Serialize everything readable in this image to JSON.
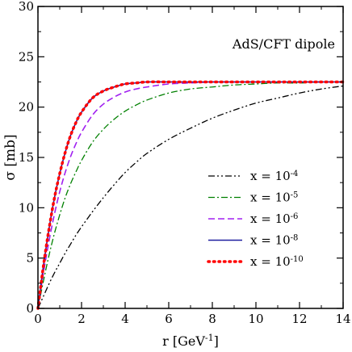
{
  "chart_data": {
    "type": "line",
    "annotation": "AdS/CFT dipole",
    "xlabel": {
      "base": "r [GeV",
      "sup": "-1",
      "tail": "]"
    },
    "ylabel": "σ [mb]",
    "xlim": [
      0,
      14
    ],
    "ylim": [
      0,
      30
    ],
    "xticks": [
      0,
      2,
      4,
      6,
      8,
      10,
      12,
      14
    ],
    "yticks": [
      0,
      5,
      10,
      15,
      20,
      25,
      30
    ],
    "grid": false,
    "legend_position": "bottom-right",
    "x": [
      0,
      0.25,
      0.5,
      0.75,
      1,
      1.25,
      1.5,
      1.75,
      2,
      2.5,
      3,
      3.5,
      4,
      4.5,
      5,
      6,
      7,
      8,
      9,
      10,
      11,
      12,
      13,
      14
    ],
    "series": [
      {
        "name": {
          "base": "x = 10",
          "sup": "-4"
        },
        "color": "#000000",
        "dash": "dashdotdot",
        "values": [
          0,
          1.2,
          2.4,
          3.5,
          4.5,
          5.5,
          6.4,
          7.3,
          8.1,
          9.6,
          11.0,
          12.3,
          13.5,
          14.5,
          15.4,
          16.8,
          17.9,
          18.9,
          19.7,
          20.4,
          20.9,
          21.4,
          21.8,
          22.1
        ]
      },
      {
        "name": {
          "base": "x = 10",
          "sup": "-5"
        },
        "color": "#008000",
        "dash": "dashdot",
        "values": [
          0,
          2.7,
          5.2,
          7.4,
          9.3,
          11.0,
          12.4,
          13.6,
          14.7,
          16.5,
          17.8,
          18.8,
          19.6,
          20.2,
          20.7,
          21.4,
          21.8,
          22.0,
          22.2,
          22.3,
          22.4,
          22.4,
          22.5,
          22.5
        ]
      },
      {
        "name": {
          "base": "x = 10",
          "sup": "-6"
        },
        "color": "#a020f0",
        "dash": "dash",
        "values": [
          0,
          3.5,
          6.6,
          9.3,
          11.6,
          13.5,
          15.1,
          16.4,
          17.5,
          19.2,
          20.3,
          21.0,
          21.5,
          21.8,
          22.0,
          22.3,
          22.4,
          22.5,
          22.5,
          22.5,
          22.5,
          22.5,
          22.5,
          22.5
        ]
      },
      {
        "name": {
          "base": "x = 10",
          "sup": "-8"
        },
        "color": "#1f1fa0",
        "dash": "solid",
        "values": [
          0,
          4.2,
          7.8,
          10.9,
          13.4,
          15.5,
          17.2,
          18.5,
          19.5,
          20.9,
          21.6,
          22.0,
          22.3,
          22.4,
          22.5,
          22.5,
          22.5,
          22.5,
          22.5,
          22.5,
          22.5,
          22.5,
          22.5,
          22.5
        ]
      },
      {
        "name": {
          "base": "x = 10",
          "sup": "-10"
        },
        "color": "#ff0000",
        "dash": "dot",
        "values": [
          0,
          4.2,
          7.8,
          10.9,
          13.4,
          15.5,
          17.2,
          18.5,
          19.5,
          20.9,
          21.6,
          22.0,
          22.3,
          22.4,
          22.5,
          22.5,
          22.5,
          22.5,
          22.5,
          22.5,
          22.5,
          22.5,
          22.5,
          22.5
        ]
      }
    ]
  }
}
